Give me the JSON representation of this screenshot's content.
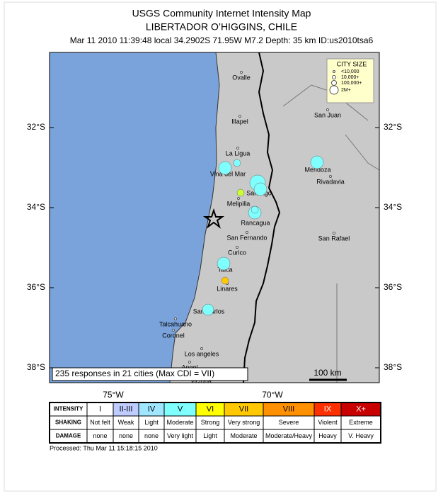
{
  "header": {
    "title": "USGS Community Internet Intensity Map",
    "subtitle": "LIBERTADOR O’HIGGINS, CHILE",
    "info": "Mar 11 2010 11:39:48 local 34.2902S 71.95W M7.2 Depth: 35 km ID:us2010tsa6"
  },
  "map": {
    "lat_labels": [
      "32°S",
      "34°S",
      "36°S",
      "38°S"
    ],
    "lon_labels": [
      "75°W",
      "70°W"
    ],
    "cities": [
      "Ovalle",
      "Illapel",
      "La Ligua",
      "Vina del Mar",
      "San Juan",
      "Mendoza",
      "Rivadavia",
      "Santiago",
      "Melipilla",
      "Rancagua",
      "San Rafael",
      "San Fernando",
      "Curico",
      "Talca",
      "Linares",
      "San Carlos",
      "Talcahuano",
      "Coronel",
      "Los angeles",
      "Angol",
      "Victoria"
    ],
    "city_size_legend": {
      "title": "CITY SIZE",
      "items": [
        "<10,000",
        "10,000+",
        "100,000+",
        "2M+"
      ]
    },
    "note": "235 responses in 21 cities (Max CDI = VII)",
    "scale": "100 km"
  },
  "intensity_table": {
    "rows": [
      {
        "label": "INTENSITY",
        "cells": [
          "I",
          "II-III",
          "IV",
          "V",
          "VI",
          "VII",
          "VIII",
          "IX",
          "X+"
        ]
      },
      {
        "label": "SHAKING",
        "cells": [
          "Not felt",
          "Weak",
          "Light",
          "Moderate",
          "Strong",
          "Very strong",
          "Severe",
          "Violent",
          "Extreme"
        ]
      },
      {
        "label": "DAMAGE",
        "cells": [
          "none",
          "none",
          "none",
          "Very light",
          "Light",
          "Moderate",
          "Moderate/Heavy",
          "Heavy",
          "V. Heavy"
        ]
      }
    ]
  },
  "footer": "Processed: Thu Mar 11 15:18:15 2010"
}
